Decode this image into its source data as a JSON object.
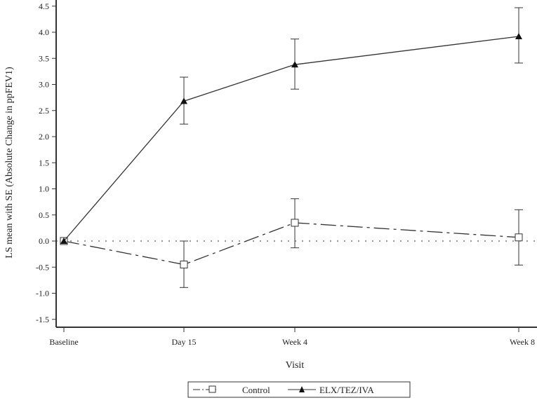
{
  "chart_data": {
    "type": "line",
    "xlabel": "Visit",
    "ylabel": "LS mean with SE (Absolute Change in ppFEV1)",
    "categories": [
      "Baseline",
      "Day 15",
      "Week 4",
      "Week 8"
    ],
    "ylim": [
      -1.5,
      4.5
    ],
    "yticks": [
      "4.5",
      "4.0",
      "3.5",
      "3.0",
      "2.5",
      "2.0",
      "1.5",
      "1.0",
      "0.5",
      "0.0",
      "-0.5",
      "-1.0",
      "-1.5"
    ],
    "reference_line": 0,
    "grid": false,
    "legend_position": "bottom",
    "series": [
      {
        "name": "Control",
        "marker": "open-square",
        "line": "dash-dot",
        "values": [
          0,
          -0.45,
          0.35,
          0.07
        ],
        "se_upper": [
          0,
          0.0,
          0.81,
          0.6
        ],
        "se_lower": [
          0,
          -0.89,
          -0.13,
          -0.46
        ]
      },
      {
        "name": "ELX/TEZ/IVA",
        "marker": "filled-triangle",
        "line": "solid",
        "values": [
          0,
          2.68,
          3.38,
          3.92
        ],
        "se_upper": [
          0,
          3.14,
          3.87,
          4.47
        ],
        "se_lower": [
          0,
          2.24,
          2.91,
          3.41
        ]
      }
    ]
  }
}
